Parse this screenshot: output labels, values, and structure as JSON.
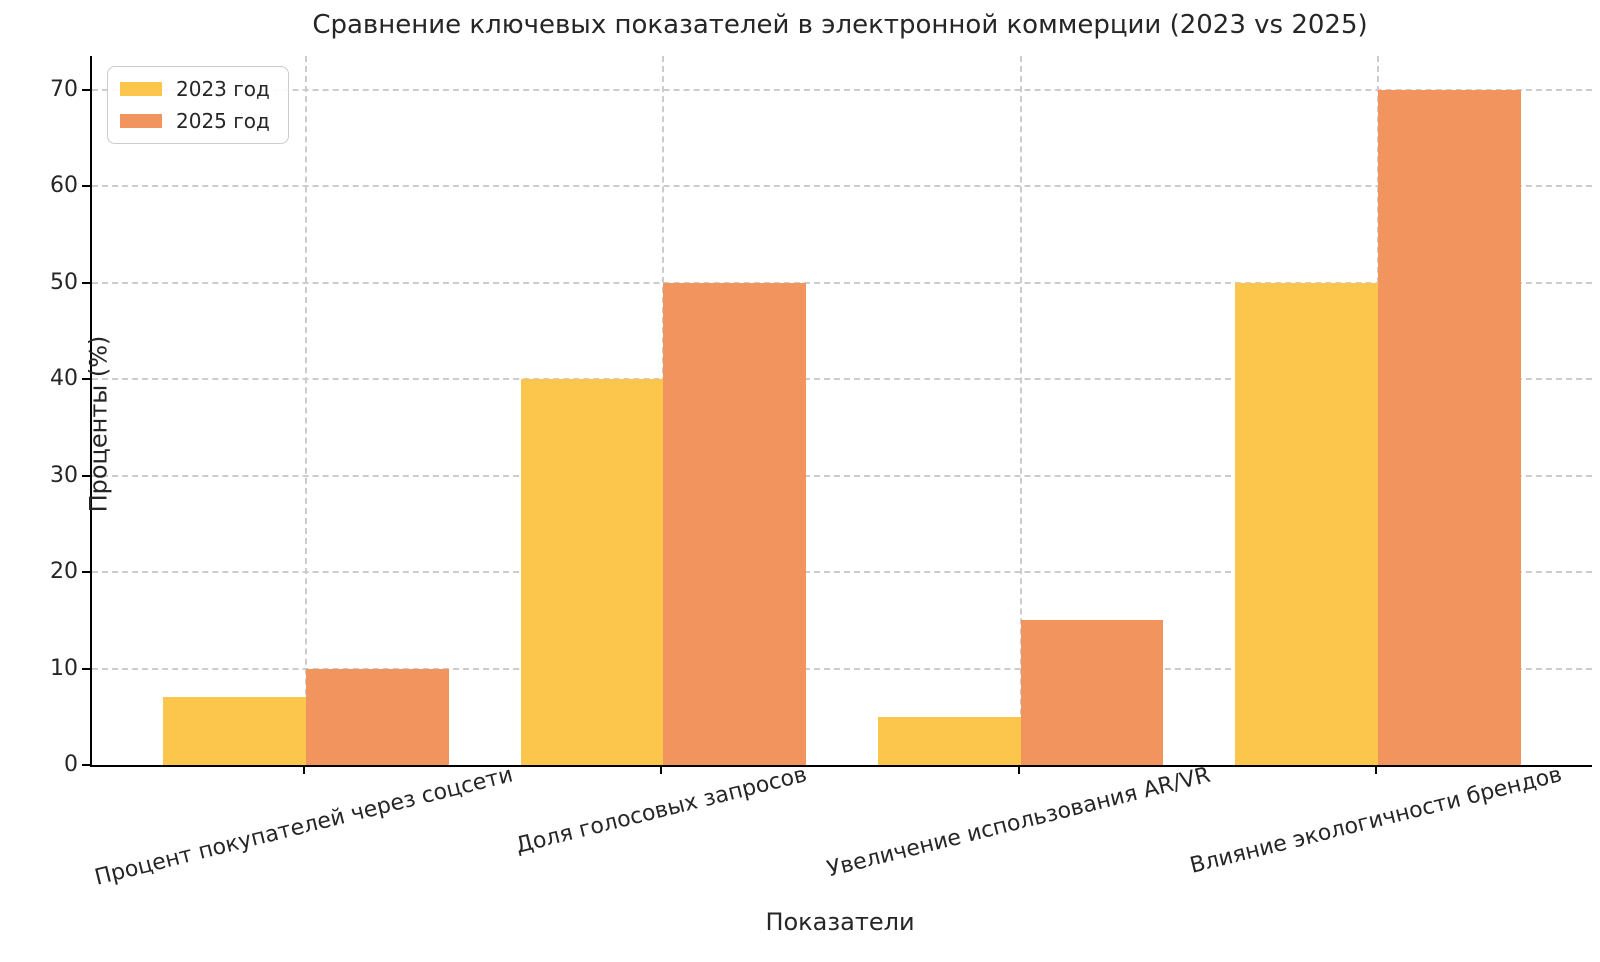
{
  "chart_data": {
    "type": "bar",
    "title": "Сравнение ключевых показателей в электронной коммерции (2023 vs 2025)",
    "xlabel": "Показатели",
    "ylabel": "Проценты (%)",
    "categories": [
      "Процент покупателей через соцсети",
      "Доля голосовых запросов",
      "Увеличение использования AR/VR",
      "Влияние экологичности брендов"
    ],
    "series": [
      {
        "name": "2023 год",
        "color": "#FCC64C",
        "values": [
          7,
          40,
          5,
          50
        ]
      },
      {
        "name": "2025 год",
        "color": "#F2945E",
        "values": [
          10,
          50,
          15,
          70
        ]
      }
    ],
    "ylim": [
      0,
      73.5
    ],
    "yticks": [
      0,
      10,
      20,
      30,
      40,
      50,
      60,
      70
    ],
    "grid": "both",
    "grid_style": "dashed",
    "legend_position": "upper left",
    "tick_rotation_deg": 14
  },
  "colors": {
    "background": "#ffffff",
    "grid": "#cccccc",
    "axis": "#000000",
    "text": "#262626",
    "legend_border": "#cccccc",
    "series_2023": "#FCC64C",
    "series_2025": "#F2945E"
  }
}
